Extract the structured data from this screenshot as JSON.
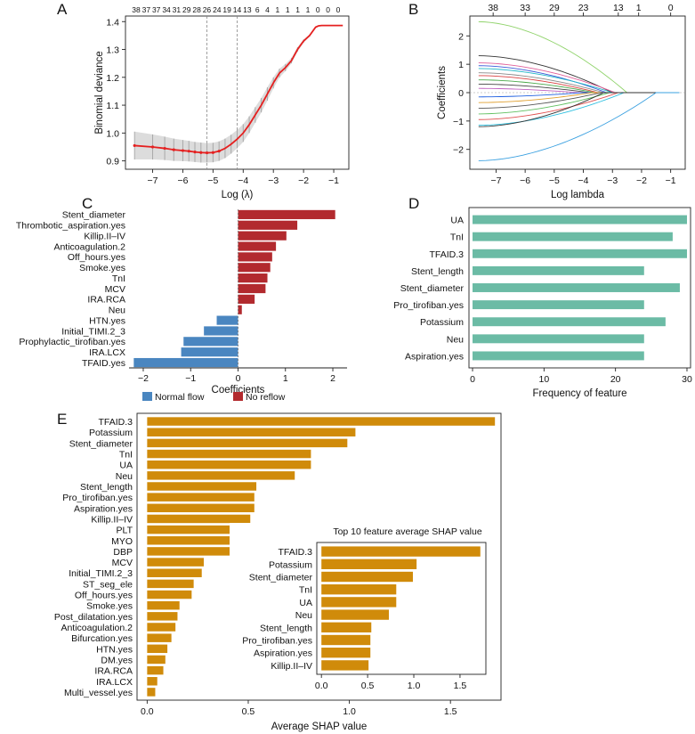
{
  "chart_data": [
    {
      "panel": "A",
      "type": "line",
      "title": "",
      "xlabel": "Log (λ)",
      "ylabel": "Binomial deviance",
      "xlim": [
        -7.9,
        -0.5
      ],
      "ylim": [
        0.87,
        1.42
      ],
      "xticks": [
        -7,
        -6,
        -5,
        -4,
        -3,
        -2,
        -1
      ],
      "yticks": [
        0.9,
        1.0,
        1.1,
        1.2,
        1.3,
        1.4
      ],
      "ytick_labels": [
        "0.9",
        "1.0",
        "1.1",
        "1.2",
        "1.3",
        "1.4"
      ],
      "top_axis_labels": [
        "38",
        "37",
        "37",
        "34",
        "31",
        "29",
        "28",
        "26",
        "24",
        "19",
        "14",
        "13",
        "6",
        "4",
        "1",
        "1",
        "1",
        "1",
        "0",
        "0",
        "0"
      ],
      "vlines": [
        -5.2,
        -4.2
      ],
      "series": [
        {
          "name": "Binomial deviance (mean)",
          "x": [
            -7.6,
            -7.0,
            -6.6,
            -6.3,
            -6.0,
            -5.8,
            -5.6,
            -5.4,
            -5.2,
            -5.0,
            -4.8,
            -4.6,
            -4.4,
            -4.2,
            -4.0,
            -3.8,
            -3.6,
            -3.4,
            -3.2,
            -3.0,
            -2.8,
            -2.6,
            -2.4,
            -2.2,
            -2.0,
            -1.8,
            -1.6,
            -1.5,
            -1.4,
            -1.2,
            -1.0,
            -0.8,
            -0.7
          ],
          "y": [
            0.955,
            0.95,
            0.945,
            0.94,
            0.937,
            0.935,
            0.932,
            0.93,
            0.929,
            0.93,
            0.935,
            0.945,
            0.96,
            0.978,
            1.0,
            1.03,
            1.065,
            1.1,
            1.14,
            1.18,
            1.215,
            1.235,
            1.26,
            1.3,
            1.33,
            1.35,
            1.38,
            1.385,
            1.386,
            1.386,
            1.386,
            1.386,
            1.386
          ],
          "error": [
            0.05,
            0.045,
            0.042,
            0.04,
            0.038,
            0.037,
            0.036,
            0.036,
            0.035,
            0.035,
            0.035,
            0.035,
            0.034,
            0.033,
            0.032,
            0.03,
            0.028,
            0.026,
            0.024,
            0.02,
            0.016,
            0.013,
            0.01,
            0.008,
            0.006,
            0.004,
            0.002,
            0.0,
            0.0,
            0.0,
            0.0,
            0.0,
            0.0
          ]
        }
      ]
    },
    {
      "panel": "B",
      "type": "line",
      "title": "",
      "xlabel": "Log lambda",
      "ylabel": "Coefficients",
      "xlim": [
        -7.9,
        -0.5
      ],
      "ylim": [
        -2.7,
        2.7
      ],
      "xticks": [
        -7,
        -6,
        -5,
        -4,
        -3,
        -2,
        -1
      ],
      "yticks": [
        -2,
        -1,
        0,
        1,
        2
      ],
      "top_axis_ticks": [
        -7.1,
        -6,
        -5,
        -4,
        -2.8,
        -2.1,
        -1
      ],
      "top_axis_labels": [
        "38",
        "33",
        "29",
        "23",
        "13",
        "1",
        "0"
      ],
      "series": [
        {
          "name": "c1",
          "color": "#90d36b",
          "start": 2.5,
          "zero_at": -2.5
        },
        {
          "name": "c2",
          "color": "#333333",
          "start": 1.3,
          "zero_at": -3.0
        },
        {
          "name": "c3",
          "color": "#e0609a",
          "start": 1.05,
          "zero_at": -2.9
        },
        {
          "name": "c4",
          "color": "#3a5bd9",
          "start": 0.95,
          "zero_at": -3.2
        },
        {
          "name": "c5",
          "color": "#22b8c8",
          "start": 0.85,
          "zero_at": -3.0
        },
        {
          "name": "c6",
          "color": "#888888",
          "start": 0.7,
          "zero_at": -3.3
        },
        {
          "name": "c7",
          "color": "#d94040",
          "start": 0.6,
          "zero_at": -3.5
        },
        {
          "name": "c8",
          "color": "#4aa84a",
          "start": 0.45,
          "zero_at": -3.6
        },
        {
          "name": "c9",
          "color": "#444444",
          "start": 0.3,
          "zero_at": -3.8
        },
        {
          "name": "c10",
          "color": "#c060c0",
          "start": 0.15,
          "zero_at": -4.2
        },
        {
          "name": "c11",
          "color": "#2060e0",
          "start": -0.15,
          "zero_at": -4.0
        },
        {
          "name": "c12",
          "color": "#e0a030",
          "start": -0.35,
          "zero_at": -3.7
        },
        {
          "name": "c13",
          "color": "#555555",
          "start": -0.55,
          "zero_at": -3.4
        },
        {
          "name": "c14",
          "color": "#60c060",
          "start": -0.75,
          "zero_at": -3.1
        },
        {
          "name": "c15",
          "color": "#e05050",
          "start": -0.95,
          "zero_at": -2.8
        },
        {
          "name": "c16",
          "color": "#30c0e0",
          "start": -1.15,
          "zero_at": -2.6
        },
        {
          "name": "c17",
          "color": "#333333",
          "start": -1.2,
          "zero_at": -3.3
        },
        {
          "name": "c18",
          "color": "#3aa0e0",
          "start": -2.4,
          "zero_at": -1.5
        }
      ]
    },
    {
      "panel": "C",
      "type": "bar",
      "orientation": "horizontal",
      "xlabel": "Coefficients",
      "xlim": [
        -2.3,
        2.3
      ],
      "xticks": [
        -2,
        -1,
        0,
        1,
        2
      ],
      "categories": [
        "Stent_diameter",
        "Thrombotic_aspiration.yes",
        "Killip.II–IV",
        "Anticoagulation.2",
        "Off_hours.yes",
        "Smoke.yes",
        "TnI",
        "MCV",
        "IRA.RCA",
        "Neu",
        "HTN.yes",
        "Initial_TIMI.2_3",
        "Prophylactic_tirofiban.yes",
        "IRA.LCX",
        "TFAID.yes"
      ],
      "values": [
        2.05,
        1.25,
        1.02,
        0.8,
        0.72,
        0.68,
        0.62,
        0.58,
        0.35,
        0.08,
        -0.45,
        -0.72,
        -1.15,
        -1.2,
        -2.2
      ],
      "legend": [
        {
          "label": "Normal flow",
          "color": "#4a86c0"
        },
        {
          "label": "No reflow",
          "color": "#b22a2e"
        }
      ]
    },
    {
      "panel": "D",
      "type": "bar",
      "orientation": "horizontal",
      "xlabel": "Frequency of feature",
      "xlim": [
        -0.5,
        30.5
      ],
      "xticks": [
        0,
        10,
        20,
        30
      ],
      "color": "#6bbba5",
      "categories": [
        "UA",
        "TnI",
        "TFAID.3",
        "Stent_length",
        "Stent_diameter",
        "Pro_tirofiban.yes",
        "Potassium",
        "Neu",
        "Aspiration.yes"
      ],
      "values": [
        30,
        28,
        30,
        24,
        29,
        24,
        27,
        24,
        24
      ]
    },
    {
      "panel": "E",
      "type": "bar",
      "orientation": "horizontal",
      "xlabel": "Average SHAP value",
      "xlim": [
        -0.05,
        1.75
      ],
      "xticks": [
        0.0,
        0.5,
        1.0,
        1.5
      ],
      "xtick_labels": [
        "0.0",
        "0.5",
        "1.0",
        "1.5"
      ],
      "color": "#d08b0a",
      "categories": [
        "TFAID.3",
        "Potassium",
        "Stent_diameter",
        "TnI",
        "UA",
        "Neu",
        "Stent_length",
        "Pro_tirofiban.yes",
        "Aspiration.yes",
        "Killip.II–IV",
        "PLT",
        "MYO",
        "DBP",
        "MCV",
        "Initial_TIMI.2_3",
        "ST_seg_ele",
        "Off_hours.yes",
        "Smoke.yes",
        "Post_dilatation.yes",
        "Anticoagulation.2",
        "Bifurcation.yes",
        "HTN.yes",
        "DM.yes",
        "IRA.RCA",
        "IRA.LCX",
        "Multi_vessel.yes"
      ],
      "values": [
        1.72,
        1.03,
        0.99,
        0.81,
        0.81,
        0.73,
        0.54,
        0.53,
        0.53,
        0.51,
        0.47,
        0.47,
        0.47,
        0.28,
        0.27,
        0.23,
        0.22,
        0.16,
        0.15,
        0.14,
        0.12,
        0.1,
        0.09,
        0.08,
        0.05,
        0.04
      ]
    },
    {
      "panel": "E-inset",
      "type": "bar",
      "orientation": "horizontal",
      "title": "Top 10 feature average SHAP value",
      "xlim": [
        -0.05,
        1.78
      ],
      "xticks": [
        0.0,
        0.5,
        1.0,
        1.5
      ],
      "xtick_labels": [
        "0.0",
        "0.5",
        "1.0",
        "1.5"
      ],
      "color": "#d08b0a",
      "categories": [
        "TFAID.3",
        "Potassium",
        "Stent_diameter",
        "TnI",
        "UA",
        "Neu",
        "Stent_length",
        "Pro_tirofiban.yes",
        "Aspiration.yes",
        "Killip.II–IV"
      ],
      "values": [
        1.72,
        1.03,
        0.99,
        0.81,
        0.81,
        0.73,
        0.54,
        0.53,
        0.53,
        0.51
      ]
    }
  ],
  "panels": {
    "A": {
      "letter": "A"
    },
    "B": {
      "letter": "B"
    },
    "C": {
      "letter": "C"
    },
    "D": {
      "letter": "D"
    },
    "E": {
      "letter": "E"
    }
  }
}
